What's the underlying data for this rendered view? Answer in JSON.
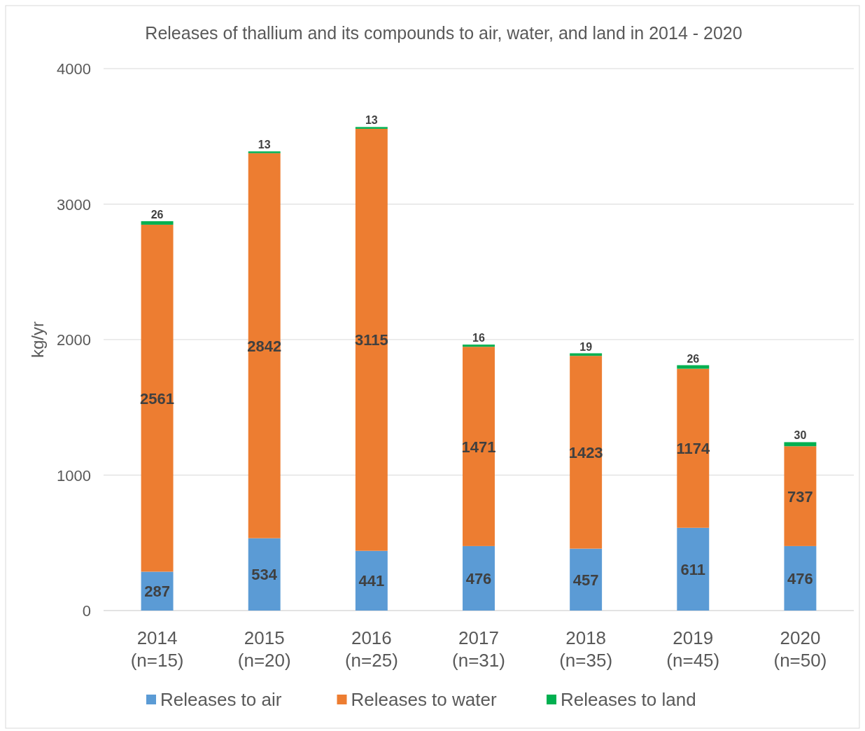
{
  "chart_data": {
    "type": "bar",
    "title": "Releases of thallium and its compounds to air, water, and land in 2014 - 2020",
    "ylabel": "kg/yr",
    "categories": [
      "2014\n(n=15)",
      "2015\n(n=20)",
      "2016\n(n=25)",
      "2017\n(n=31)",
      "2018\n(n=35)",
      "2019\n(n=45)",
      "2020\n(n=50)"
    ],
    "series": [
      {
        "name": "Releases to air",
        "color": "#5b9bd5",
        "values": [
          287,
          534,
          441,
          476,
          457,
          611,
          476
        ]
      },
      {
        "name": "Releases to water",
        "color": "#ed7d31",
        "values": [
          2561,
          2842,
          3115,
          1471,
          1423,
          1174,
          737
        ]
      },
      {
        "name": "Releases to land",
        "color": "#00b050",
        "values": [
          26,
          13,
          13,
          16,
          19,
          26,
          30
        ]
      }
    ],
    "stacked": true,
    "ylim": [
      0,
      4000
    ],
    "yticks": [
      0,
      1000,
      2000,
      3000,
      4000
    ],
    "grid": "y",
    "legend": "bottom",
    "data_labels": true
  }
}
